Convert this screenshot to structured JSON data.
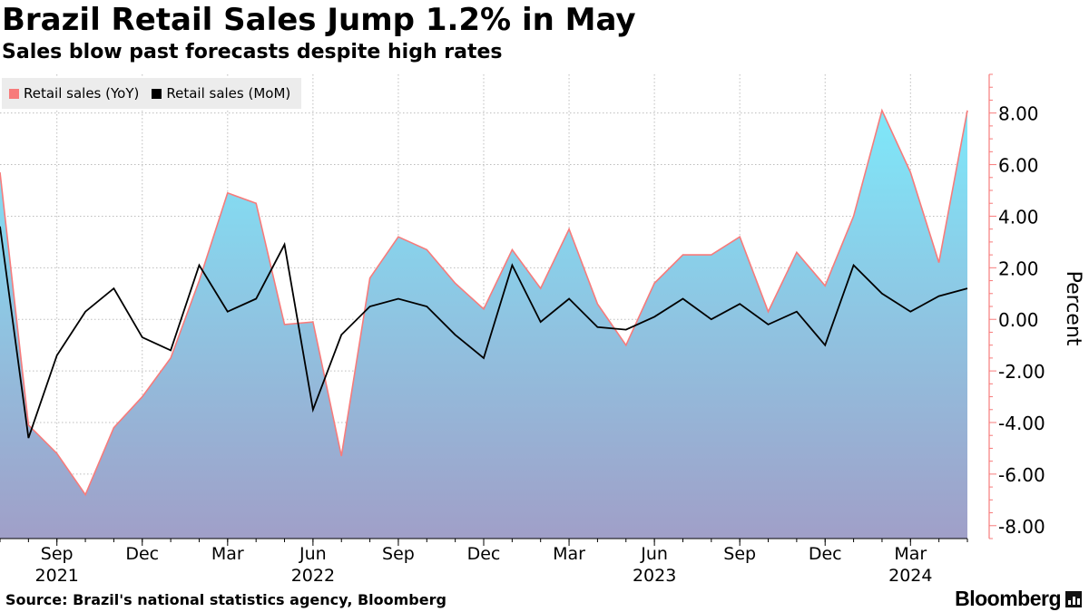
{
  "title": "Brazil Retail Sales Jump 1.2% in May",
  "subtitle": "Sales blow past forecasts despite high rates",
  "source": "Source: Brazil's national statistics agency, Bloomberg",
  "brand": "Bloomberg",
  "colors": {
    "yoy_line": "#f77b7b",
    "mom_line": "#000000",
    "fill_top": "#7ee8fa",
    "fill_bottom": "#a09fc8",
    "axis": "#f77b7b"
  },
  "chart_data": {
    "type": "area",
    "title": "Brazil Retail Sales Jump 1.2% in May",
    "ylabel": "Percent",
    "ylim": [
      -8.5,
      9.5
    ],
    "yticks": [
      -8,
      -6,
      -4,
      -2,
      0,
      2,
      4,
      6,
      8
    ],
    "ytick_labels": [
      "-8.00",
      "-6.00",
      "-4.00",
      "-2.00",
      "0.00",
      "2.00",
      "4.00",
      "6.00",
      "8.00"
    ],
    "grid": true,
    "legend_position": "top-left",
    "x": [
      "2021-07",
      "2021-08",
      "2021-09",
      "2021-10",
      "2021-11",
      "2021-12",
      "2022-01",
      "2022-02",
      "2022-03",
      "2022-04",
      "2022-05",
      "2022-06",
      "2022-07",
      "2022-08",
      "2022-09",
      "2022-10",
      "2022-11",
      "2022-12",
      "2023-01",
      "2023-02",
      "2023-03",
      "2023-04",
      "2023-05",
      "2023-06",
      "2023-07",
      "2023-08",
      "2023-09",
      "2023-10",
      "2023-11",
      "2023-12",
      "2024-01",
      "2024-02",
      "2024-03",
      "2024-04",
      "2024-05"
    ],
    "x_ticks": [
      {
        "index": 2,
        "label": "Sep",
        "year": "2021"
      },
      {
        "index": 5,
        "label": "Dec",
        "year": ""
      },
      {
        "index": 8,
        "label": "Mar",
        "year": ""
      },
      {
        "index": 11,
        "label": "Jun",
        "year": "2022"
      },
      {
        "index": 14,
        "label": "Sep",
        "year": ""
      },
      {
        "index": 17,
        "label": "Dec",
        "year": ""
      },
      {
        "index": 20,
        "label": "Mar",
        "year": ""
      },
      {
        "index": 23,
        "label": "Jun",
        "year": "2023"
      },
      {
        "index": 26,
        "label": "Sep",
        "year": ""
      },
      {
        "index": 29,
        "label": "Dec",
        "year": ""
      },
      {
        "index": 32,
        "label": "Mar",
        "year": "2024"
      }
    ],
    "series": [
      {
        "name": "Retail sales (YoY)",
        "style": "area",
        "values": [
          5.7,
          -4.1,
          -5.2,
          -6.8,
          -4.2,
          -3.0,
          -1.5,
          1.5,
          4.9,
          4.5,
          -0.2,
          -0.1,
          -5.3,
          1.6,
          3.2,
          2.7,
          1.4,
          0.4,
          2.7,
          1.2,
          3.5,
          0.6,
          -1.0,
          1.4,
          2.5,
          2.5,
          3.2,
          0.3,
          2.6,
          1.3,
          4.0,
          8.1,
          5.7,
          2.2,
          8.1
        ]
      },
      {
        "name": "Retail sales (MoM)",
        "style": "line",
        "values": [
          3.6,
          -4.6,
          -1.4,
          0.3,
          1.2,
          -0.7,
          -1.2,
          2.1,
          0.3,
          0.8,
          2.9,
          -3.5,
          -0.6,
          0.5,
          0.8,
          0.5,
          -0.6,
          -1.5,
          2.1,
          -0.1,
          0.8,
          -0.3,
          -0.4,
          0.1,
          0.8,
          0.0,
          0.6,
          -0.2,
          0.3,
          -1.0,
          2.1,
          1.0,
          0.3,
          0.9,
          1.2
        ]
      }
    ]
  }
}
